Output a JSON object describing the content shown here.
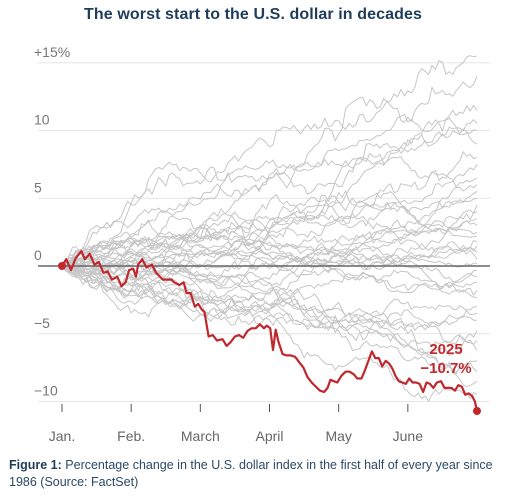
{
  "chart_data": {
    "type": "line",
    "title": "The worst start to the U.S. dollar in decades",
    "xlabel": "",
    "ylabel": "",
    "ylim": [
      -11,
      15.5
    ],
    "y_ticks": [
      {
        "value": 15,
        "label": "+15%"
      },
      {
        "value": 10,
        "label": "10"
      },
      {
        "value": 5,
        "label": "5"
      },
      {
        "value": 0,
        "label": "0"
      },
      {
        "value": -5,
        "label": "−5"
      },
      {
        "value": -10,
        "label": "−10"
      }
    ],
    "x_ticks": [
      "Jan.",
      "Feb.",
      "March",
      "April",
      "May",
      "June"
    ],
    "grid": "horizontal",
    "highlight_series": {
      "name": "2025",
      "color": "#c0282d",
      "annotation_year": "2025",
      "annotation_value": "−10.7%",
      "points": [
        [
          0.0,
          0.0
        ],
        [
          0.06,
          0.5
        ],
        [
          0.13,
          -0.3
        ],
        [
          0.2,
          0.6
        ],
        [
          0.28,
          1.1
        ],
        [
          0.33,
          0.5
        ],
        [
          0.4,
          0.9
        ],
        [
          0.47,
          0.1
        ],
        [
          0.53,
          0.3
        ],
        [
          0.6,
          -0.5
        ],
        [
          0.66,
          -0.4
        ],
        [
          0.72,
          -1.0
        ],
        [
          0.8,
          -0.8
        ],
        [
          0.86,
          -1.5
        ],
        [
          0.92,
          -1.2
        ],
        [
          0.97,
          -0.3
        ],
        [
          1.03,
          -0.2
        ],
        [
          1.07,
          -0.8
        ],
        [
          1.1,
          0.1
        ],
        [
          1.16,
          0.5
        ],
        [
          1.22,
          -0.1
        ],
        [
          1.3,
          0.1
        ],
        [
          1.36,
          -0.5
        ],
        [
          1.4,
          -0.7
        ],
        [
          1.46,
          -1.0
        ],
        [
          1.52,
          -1.0
        ],
        [
          1.58,
          -1.0
        ],
        [
          1.62,
          -1.2
        ],
        [
          1.7,
          -1.4
        ],
        [
          1.76,
          -1.2
        ],
        [
          1.8,
          -2.0
        ],
        [
          1.86,
          -2.0
        ],
        [
          1.92,
          -3.0
        ],
        [
          1.97,
          -2.8
        ],
        [
          2.02,
          -3.2
        ],
        [
          2.06,
          -3.4
        ],
        [
          2.12,
          -5.2
        ],
        [
          2.18,
          -5.1
        ],
        [
          2.24,
          -5.5
        ],
        [
          2.32,
          -5.4
        ],
        [
          2.38,
          -5.9
        ],
        [
          2.44,
          -5.6
        ],
        [
          2.5,
          -5.2
        ],
        [
          2.56,
          -5.1
        ],
        [
          2.62,
          -5.3
        ],
        [
          2.68,
          -4.8
        ],
        [
          2.74,
          -4.6
        ],
        [
          2.8,
          -4.6
        ],
        [
          2.86,
          -4.3
        ],
        [
          2.92,
          -4.6
        ],
        [
          2.96,
          -4.4
        ],
        [
          3.01,
          -4.6
        ],
        [
          3.05,
          -6.2
        ],
        [
          3.09,
          -4.7
        ],
        [
          3.13,
          -5.6
        ],
        [
          3.19,
          -6.5
        ],
        [
          3.25,
          -6.6
        ],
        [
          3.31,
          -6.6
        ],
        [
          3.37,
          -6.7
        ],
        [
          3.43,
          -7.1
        ],
        [
          3.49,
          -7.5
        ],
        [
          3.55,
          -8.2
        ],
        [
          3.61,
          -8.6
        ],
        [
          3.67,
          -8.9
        ],
        [
          3.73,
          -9.2
        ],
        [
          3.79,
          -9.3
        ],
        [
          3.84,
          -9.0
        ],
        [
          3.88,
          -8.4
        ],
        [
          3.93,
          -8.5
        ],
        [
          3.98,
          -8.6
        ],
        [
          4.04,
          -8.1
        ],
        [
          4.1,
          -7.8
        ],
        [
          4.16,
          -7.8
        ],
        [
          4.22,
          -8.0
        ],
        [
          4.27,
          -8.3
        ],
        [
          4.33,
          -8.3
        ],
        [
          4.38,
          -7.7
        ],
        [
          4.43,
          -7.0
        ],
        [
          4.48,
          -6.3
        ],
        [
          4.53,
          -6.8
        ],
        [
          4.58,
          -6.8
        ],
        [
          4.63,
          -7.4
        ],
        [
          4.68,
          -7.0
        ],
        [
          4.73,
          -7.2
        ],
        [
          4.78,
          -7.6
        ],
        [
          4.82,
          -8.1
        ],
        [
          4.87,
          -8.5
        ],
        [
          4.92,
          -8.6
        ],
        [
          4.97,
          -8.7
        ],
        [
          5.02,
          -8.3
        ],
        [
          5.07,
          -8.6
        ],
        [
          5.12,
          -8.6
        ],
        [
          5.17,
          -8.7
        ],
        [
          5.22,
          -9.3
        ],
        [
          5.27,
          -8.6
        ],
        [
          5.32,
          -8.7
        ],
        [
          5.37,
          -9.0
        ],
        [
          5.42,
          -8.6
        ],
        [
          5.48,
          -8.5
        ],
        [
          5.53,
          -9.0
        ],
        [
          5.58,
          -9.0
        ],
        [
          5.63,
          -9.0
        ],
        [
          5.68,
          -9.2
        ],
        [
          5.73,
          -8.8
        ],
        [
          5.78,
          -8.9
        ],
        [
          5.83,
          -9.5
        ],
        [
          5.88,
          -9.4
        ],
        [
          5.93,
          -9.6
        ],
        [
          5.97,
          -10.0
        ],
        [
          6.0,
          -10.7
        ]
      ]
    },
    "background_series": {
      "count": 38,
      "description_color": "#c6c6c6",
      "final_values": [
        15.5,
        14.0,
        11.5,
        10.5,
        10.0,
        9.0,
        8.0,
        7.5,
        6.5,
        6.0,
        5.5,
        5.0,
        4.5,
        4.0,
        3.5,
        3.0,
        2.5,
        2.2,
        1.8,
        1.5,
        1.0,
        0.5,
        0.2,
        -0.3,
        -0.8,
        -1.2,
        -1.8,
        -2.3,
        -3.0,
        -3.5,
        -4.0,
        -4.8,
        -5.5,
        -6.2,
        -7.0,
        -7.8,
        -8.5,
        -9.5
      ],
      "volatility": [
        1.0,
        0.9,
        0.85,
        0.8,
        0.75,
        0.7,
        0.75,
        0.7,
        0.65,
        0.65,
        0.6,
        0.6,
        0.55,
        0.6,
        0.55,
        0.5,
        0.55,
        0.5,
        0.5,
        0.5,
        0.5,
        0.5,
        0.45,
        0.5,
        0.5,
        0.55,
        0.55,
        0.55,
        0.6,
        0.6,
        0.6,
        0.65,
        0.65,
        0.7,
        0.7,
        0.75,
        0.8,
        0.85
      ]
    }
  },
  "caption": {
    "label": "Figure 1:",
    "text": "Percentage change in the U.S. dollar index in the first half of every year since 1986 (Source: FactSet)"
  }
}
